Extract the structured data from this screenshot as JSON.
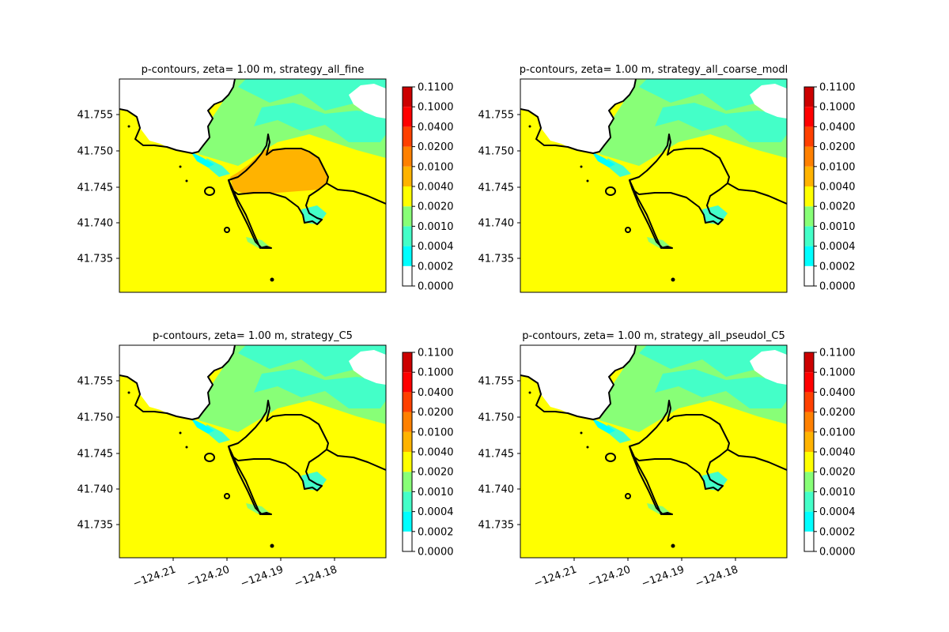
{
  "chart_data": [
    {
      "type": "heatmap",
      "title": "p-contours, zeta= 1.00 m, strategy_all_fine",
      "contour_levels": [
        "0.0000",
        "0.0002",
        "0.0004",
        "0.0010",
        "0.0020",
        "0.0040",
        "0.0100",
        "0.0200",
        "0.0400",
        "0.1000",
        "0.1100"
      ],
      "yticks": [
        "41.735",
        "41.740",
        "41.745",
        "41.750",
        "41.755"
      ],
      "xticks": [],
      "field": "p",
      "dominant_level_band": "0.0040-0.0100 offshore; 0.0100-0.0200 inside harbor basin"
    },
    {
      "type": "heatmap",
      "title": "p-contours, zeta= 1.00 m, strategy_all_coarse_modl",
      "contour_levels": [
        "0.0000",
        "0.0002",
        "0.0004",
        "0.0010",
        "0.0020",
        "0.0040",
        "0.0100",
        "0.0200",
        "0.0400",
        "0.1000",
        "0.1100"
      ],
      "yticks": [
        "41.735",
        "41.740",
        "41.745",
        "41.750",
        "41.755"
      ],
      "xticks": [],
      "field": "p",
      "dominant_level_band": "0.0040-0.0100"
    },
    {
      "type": "heatmap",
      "title": "p-contours, zeta= 1.00 m, strategy_C5",
      "contour_levels": [
        "0.0000",
        "0.0002",
        "0.0004",
        "0.0010",
        "0.0020",
        "0.0040",
        "0.0100",
        "0.0200",
        "0.0400",
        "0.1000",
        "0.1100"
      ],
      "yticks": [
        "41.735",
        "41.740",
        "41.745",
        "41.750",
        "41.755"
      ],
      "xticks": [
        "−124.21",
        "−124.20",
        "−124.19",
        "−124.18"
      ],
      "field": "p",
      "dominant_level_band": "0.0040-0.0100"
    },
    {
      "type": "heatmap",
      "title": "p-contours, zeta= 1.00 m, strategy_all_pseudoI_C5",
      "contour_levels": [
        "0.0000",
        "0.0002",
        "0.0004",
        "0.0010",
        "0.0020",
        "0.0040",
        "0.0100",
        "0.0200",
        "0.0400",
        "0.1000",
        "0.1100"
      ],
      "yticks": [
        "41.735",
        "41.740",
        "41.745",
        "41.750",
        "41.755"
      ],
      "xticks": [
        "−124.21",
        "−124.20",
        "−124.19",
        "−124.18"
      ],
      "field": "p",
      "dominant_level_band": "0.0040-0.0100"
    }
  ],
  "colors": {
    "levels": [
      "#ffffff",
      "#00ffff",
      "#44ffc8",
      "#88ff77",
      "#ffff00",
      "#ffb300",
      "#ff8000",
      "#ff4000",
      "#ff0000",
      "#cc0000"
    ],
    "coastline": "#000000",
    "harbor_highlight": "#ffb300"
  }
}
